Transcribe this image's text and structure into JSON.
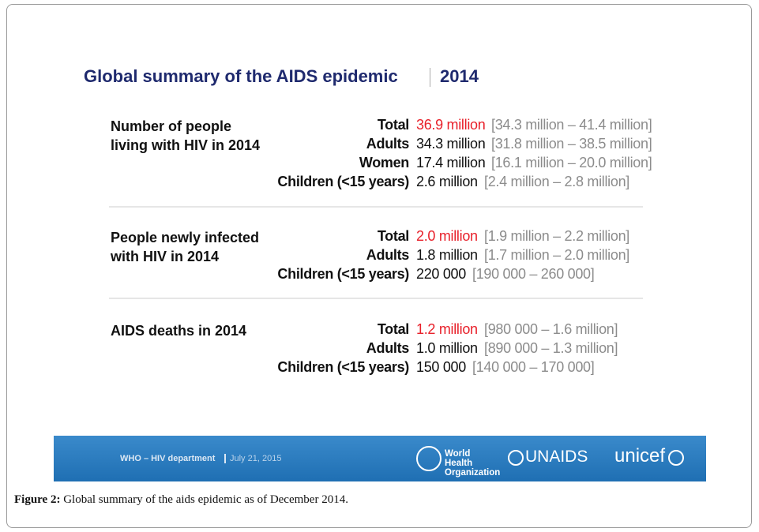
{
  "slide": {
    "title": "Global summary of the AIDS epidemic",
    "title_year": "2014",
    "sections": [
      {
        "label": "Number of people living with HIV in 2014",
        "rows": [
          {
            "label": "Total",
            "value": "36.9 million",
            "range": "[34.3 million – 41.4 million]"
          },
          {
            "label": "Adults",
            "value": "34.3 million",
            "range": "[31.8 million – 38.5 million]"
          },
          {
            "label": "Women",
            "value": "17.4 million",
            "range": "[16.1 million – 20.0 million]"
          },
          {
            "label": "Children (<15 years)",
            "value": "2.6 million",
            "range": "[2.4 million – 2.8 million]"
          }
        ]
      },
      {
        "label": "People newly infected with HIV in 2014",
        "rows": [
          {
            "label": "Total",
            "value": "2.0 million",
            "range": "[1.9 million – 2.2 million]"
          },
          {
            "label": "Adults",
            "value": "1.8 million",
            "range": "[1.7 million – 2.0 million]"
          },
          {
            "label": "Children (<15 years)",
            "value": "220 000",
            "range": "[190 000 – 260 000]"
          }
        ]
      },
      {
        "label": "AIDS deaths in 2014",
        "rows": [
          {
            "label": "Total",
            "value": "1.2 million",
            "range": "[980 000 – 1.6 million]"
          },
          {
            "label": "Adults",
            "value": "1.0 million",
            "range": "[890 000 – 1.3 million]"
          },
          {
            "label": "Children (<15 years)",
            "value": "150 000",
            "range": "[140 000 – 170 000]"
          }
        ]
      }
    ],
    "footer": {
      "department": "WHO – HIV department",
      "date": "July 21, 2015",
      "logos": [
        "World Health Organization",
        "UNAIDS",
        "unicef"
      ]
    }
  },
  "caption": {
    "label": "Figure 2:",
    "text": "Global summary of the aids epidemic as of December 2014."
  }
}
